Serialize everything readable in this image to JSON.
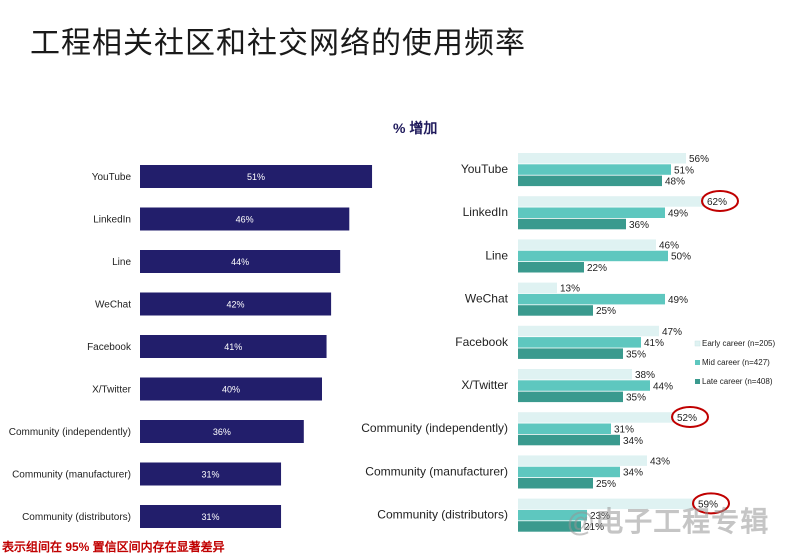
{
  "title": "工程相关社区和社交网络的使用频率",
  "subtitle": "% 增加",
  "footnote": "表示组间在 95% 置信区间内存在显著差异",
  "watermark": "@电子工程专辑",
  "colors": {
    "overall": "#221e6b",
    "early": "#dff2f2",
    "mid": "#5ec7bf",
    "late": "#3a9a8e",
    "highlight": "#c00000"
  },
  "chart_data": [
    {
      "type": "bar",
      "orientation": "horizontal",
      "categories": [
        "YouTube",
        "LinkedIn",
        "Line",
        "WeChat",
        "Facebook",
        "X/Twitter",
        "Community (independently)",
        "Community (manufacturer)",
        "Community (distributors)"
      ],
      "values": [
        51,
        46,
        44,
        42,
        41,
        40,
        36,
        31,
        31
      ],
      "value_labels": [
        "51%",
        "46%",
        "44%",
        "42%",
        "41%",
        "40%",
        "36%",
        "31%",
        "31%"
      ],
      "title": "",
      "xlabel": "",
      "ylabel": ""
    },
    {
      "type": "bar",
      "orientation": "horizontal",
      "categories": [
        "YouTube",
        "LinkedIn",
        "Line",
        "WeChat",
        "Facebook",
        "X/Twitter",
        "Community (independently)",
        "Community (manufacturer)",
        "Community (distributors)"
      ],
      "series": [
        {
          "name": "Early career (n=205)",
          "values": [
            56,
            62,
            46,
            13,
            47,
            38,
            52,
            43,
            59
          ],
          "labels": [
            "56%",
            "62%",
            "46%",
            "13%",
            "47%",
            "38%",
            "52%",
            "43%",
            "59%"
          ]
        },
        {
          "name": "Mid career (n=427)",
          "values": [
            51,
            49,
            50,
            49,
            41,
            44,
            31,
            34,
            23
          ],
          "labels": [
            "51%",
            "49%",
            "50%",
            "49%",
            "41%",
            "44%",
            "31%",
            "34%",
            "23%"
          ]
        },
        {
          "name": "Late career (n=408)",
          "values": [
            48,
            36,
            22,
            25,
            35,
            35,
            34,
            25,
            21
          ],
          "labels": [
            "48%",
            "36%",
            "22%",
            "25%",
            "35%",
            "35%",
            "34%",
            "25%",
            "21%"
          ]
        }
      ],
      "highlighted": [
        {
          "category": "LinkedIn",
          "series": "Early career (n=205)"
        },
        {
          "category": "Community (independently)",
          "series": "Early career (n=205)"
        },
        {
          "category": "Community (distributors)",
          "series": "Early career (n=205)"
        }
      ],
      "legend_position": "right",
      "title": "",
      "xlabel": "",
      "ylabel": ""
    }
  ]
}
